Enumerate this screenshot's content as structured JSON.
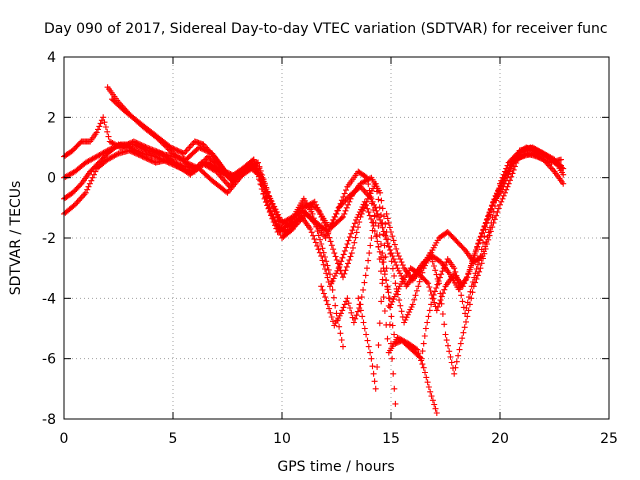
{
  "chart_data": {
    "type": "scatter",
    "title": "Day 090 of 2017, Sidereal Day-to-day VTEC variation (SDTVAR) for receiver func",
    "xlabel": "GPS time / hours",
    "ylabel": "SDTVAR / TECUs",
    "xlim": [
      0,
      25
    ],
    "ylim": [
      -8,
      4
    ],
    "xticks": [
      0,
      5,
      10,
      15,
      20,
      25
    ],
    "yticks": [
      -8,
      -6,
      -4,
      -2,
      0,
      2,
      4
    ],
    "xtick_labels": [
      "0",
      "5",
      "10",
      "15",
      "20",
      "25"
    ],
    "ytick_labels": [
      "-8",
      "-6",
      "-4",
      "-2",
      "0",
      "2",
      "4"
    ],
    "grid": true,
    "marker": "+",
    "color": "#ff0000",
    "series": [
      {
        "points": [
          [
            0.0,
            0.7
          ],
          [
            0.4,
            0.9
          ],
          [
            0.8,
            1.2
          ],
          [
            1.2,
            1.2
          ],
          [
            1.5,
            1.5
          ],
          [
            1.8,
            2.0
          ],
          [
            2.1,
            1.2
          ],
          [
            2.6,
            1.0
          ],
          [
            3.2,
            1.2
          ],
          [
            3.8,
            1.0
          ],
          [
            4.5,
            0.8
          ],
          [
            5.2,
            0.4
          ],
          [
            5.8,
            0.1
          ],
          [
            6.3,
            0.5
          ],
          [
            7.0,
            0.2
          ],
          [
            7.6,
            -0.3
          ],
          [
            8.2,
            0.3
          ],
          [
            8.7,
            0.6
          ],
          [
            9.3,
            -0.8
          ],
          [
            9.8,
            -1.6
          ],
          [
            10.2,
            -1.8
          ],
          [
            10.6,
            -1.2
          ],
          [
            11.0,
            -0.7
          ],
          [
            11.4,
            -1.2
          ],
          [
            11.8,
            -2.2
          ],
          [
            12.2,
            -3.2
          ],
          [
            12.5,
            -4.5
          ],
          [
            12.8,
            -5.6
          ]
        ]
      },
      {
        "points": [
          [
            2.0,
            3.0
          ],
          [
            2.5,
            2.5
          ],
          [
            3.0,
            2.1
          ],
          [
            3.6,
            1.7
          ],
          [
            4.3,
            1.3
          ],
          [
            5.0,
            0.8
          ],
          [
            5.6,
            0.5
          ],
          [
            6.2,
            0.3
          ],
          [
            6.8,
            -0.1
          ],
          [
            7.5,
            -0.5
          ],
          [
            8.3,
            0.2
          ],
          [
            8.9,
            0.5
          ],
          [
            9.4,
            -1.0
          ],
          [
            10.0,
            -2.0
          ],
          [
            10.5,
            -1.7
          ],
          [
            11.0,
            -1.0
          ],
          [
            11.5,
            -0.8
          ],
          [
            12.0,
            -1.6
          ],
          [
            12.4,
            -2.5
          ],
          [
            12.8,
            -3.3
          ],
          [
            13.2,
            -2.5
          ],
          [
            13.6,
            -1.3
          ],
          [
            14.0,
            -0.6
          ],
          [
            14.3,
            -0.2
          ],
          [
            14.6,
            -1.5
          ],
          [
            14.8,
            -3.0
          ],
          [
            15.0,
            -5.5
          ],
          [
            15.2,
            -7.5
          ]
        ]
      },
      {
        "points": [
          [
            2.2,
            2.6
          ],
          [
            2.8,
            2.2
          ],
          [
            3.5,
            1.8
          ],
          [
            4.2,
            1.4
          ],
          [
            4.9,
            1.0
          ],
          [
            5.5,
            0.8
          ],
          [
            6.0,
            1.2
          ],
          [
            6.4,
            1.1
          ],
          [
            7.0,
            0.6
          ],
          [
            7.6,
            0.0
          ],
          [
            8.2,
            0.3
          ],
          [
            8.7,
            0.6
          ],
          [
            9.2,
            -0.7
          ],
          [
            9.8,
            -1.8
          ],
          [
            10.4,
            -1.5
          ],
          [
            11.0,
            -0.9
          ],
          [
            11.6,
            -1.0
          ],
          [
            12.2,
            -1.7
          ],
          [
            12.8,
            -1.3
          ],
          [
            13.2,
            -0.6
          ],
          [
            13.6,
            -0.2
          ],
          [
            14.1,
            0.0
          ],
          [
            14.5,
            -0.5
          ],
          [
            14.8,
            -1.8
          ],
          [
            15.2,
            -3.5
          ],
          [
            15.6,
            -4.8
          ],
          [
            16.0,
            -4.2
          ],
          [
            16.5,
            -3.0
          ],
          [
            16.9,
            -2.4
          ],
          [
            17.2,
            -2.0
          ],
          [
            17.6,
            -1.8
          ],
          [
            18.0,
            -2.1
          ],
          [
            18.4,
            -2.4
          ],
          [
            18.8,
            -2.8
          ],
          [
            19.2,
            -2.6
          ],
          [
            19.6,
            -1.5
          ],
          [
            20.0,
            -0.2
          ],
          [
            20.4,
            0.5
          ],
          [
            20.8,
            0.8
          ],
          [
            21.2,
            1.0
          ],
          [
            21.6,
            0.9
          ],
          [
            22.2,
            0.7
          ],
          [
            22.8,
            0.4
          ]
        ]
      },
      {
        "points": [
          [
            0.0,
            -1.2
          ],
          [
            0.5,
            -0.9
          ],
          [
            1.0,
            -0.5
          ],
          [
            1.5,
            0.3
          ],
          [
            2.0,
            0.6
          ],
          [
            2.5,
            0.8
          ],
          [
            3.0,
            0.9
          ],
          [
            3.6,
            0.7
          ],
          [
            4.2,
            0.5
          ],
          [
            4.8,
            0.6
          ],
          [
            5.4,
            0.4
          ],
          [
            6.0,
            0.3
          ],
          [
            6.6,
            0.5
          ],
          [
            7.2,
            0.2
          ],
          [
            7.8,
            -0.1
          ],
          [
            8.4,
            0.4
          ],
          [
            8.9,
            0.5
          ],
          [
            9.4,
            -0.6
          ],
          [
            10.0,
            -1.5
          ],
          [
            10.5,
            -1.3
          ],
          [
            11.0,
            -1.1
          ],
          [
            11.5,
            -1.5
          ],
          [
            12.0,
            -2.0
          ],
          [
            12.5,
            -1.2
          ],
          [
            13.0,
            -0.3
          ],
          [
            13.5,
            0.2
          ],
          [
            13.9,
            0.0
          ],
          [
            14.3,
            -1.5
          ],
          [
            14.6,
            -3.5
          ],
          [
            14.9,
            -5.8
          ],
          [
            15.3,
            -5.3
          ],
          [
            15.8,
            -5.5
          ],
          [
            16.2,
            -5.7
          ],
          [
            16.5,
            -6.3
          ],
          [
            16.8,
            -7.1
          ],
          [
            17.1,
            -7.8
          ]
        ]
      },
      {
        "points": [
          [
            0.0,
            -0.7
          ],
          [
            0.4,
            -0.5
          ],
          [
            0.8,
            -0.2
          ],
          [
            1.2,
            0.2
          ],
          [
            1.6,
            0.5
          ],
          [
            2.0,
            0.8
          ],
          [
            2.5,
            1.1
          ],
          [
            3.0,
            1.0
          ],
          [
            3.6,
            0.8
          ],
          [
            4.2,
            0.7
          ],
          [
            4.8,
            0.5
          ],
          [
            5.4,
            0.3
          ],
          [
            6.0,
            0.2
          ],
          [
            6.6,
            0.7
          ],
          [
            7.2,
            0.3
          ],
          [
            7.7,
            -0.1
          ],
          [
            8.3,
            0.3
          ],
          [
            8.8,
            0.4
          ],
          [
            9.3,
            -0.5
          ],
          [
            9.9,
            -1.4
          ],
          [
            10.4,
            -1.6
          ],
          [
            10.9,
            -1.3
          ],
          [
            11.3,
            -1.7
          ],
          [
            11.8,
            -2.6
          ],
          [
            12.2,
            -3.6
          ],
          [
            12.6,
            -3.0
          ],
          [
            13.0,
            -2.2
          ],
          [
            13.4,
            -1.4
          ],
          [
            13.8,
            -0.8
          ],
          [
            14.2,
            -1.6
          ],
          [
            14.6,
            -2.8
          ],
          [
            15.0,
            -4.2
          ],
          [
            15.4,
            -3.6
          ],
          [
            15.9,
            -3.0
          ],
          [
            16.3,
            -3.2
          ],
          [
            16.7,
            -3.5
          ],
          [
            17.1,
            -4.4
          ],
          [
            17.5,
            -3.6
          ],
          [
            17.9,
            -3.2
          ],
          [
            18.3,
            -3.6
          ],
          [
            18.6,
            -3.1
          ],
          [
            19.0,
            -2.2
          ],
          [
            19.4,
            -1.4
          ],
          [
            19.8,
            -0.6
          ],
          [
            20.2,
            0.0
          ],
          [
            20.6,
            0.6
          ],
          [
            21.0,
            0.7
          ],
          [
            21.5,
            0.8
          ],
          [
            22.0,
            0.6
          ],
          [
            22.5,
            0.2
          ],
          [
            22.9,
            -0.2
          ]
        ]
      },
      {
        "points": [
          [
            11.8,
            -3.6
          ],
          [
            12.1,
            -4.2
          ],
          [
            12.4,
            -4.9
          ],
          [
            12.7,
            -4.5
          ],
          [
            13.0,
            -4.0
          ],
          [
            13.3,
            -4.8
          ],
          [
            13.6,
            -4.2
          ],
          [
            13.9,
            -3.0
          ],
          [
            14.1,
            -2.0
          ],
          [
            14.3,
            -1.0
          ],
          [
            14.6,
            -2.5
          ],
          [
            14.9,
            -4.0
          ],
          [
            15.2,
            -5.5
          ],
          [
            15.5,
            -5.4
          ],
          [
            15.8,
            -5.6
          ],
          [
            16.1,
            -5.8
          ],
          [
            16.4,
            -6.0
          ],
          [
            16.6,
            -5.0
          ],
          [
            16.9,
            -4.0
          ],
          [
            17.3,
            -3.2
          ],
          [
            17.6,
            -2.7
          ],
          [
            17.9,
            -3.0
          ],
          [
            18.1,
            -3.5
          ],
          [
            18.4,
            -4.5
          ],
          [
            18.7,
            -3.6
          ],
          [
            19.1,
            -2.6
          ],
          [
            19.4,
            -1.5
          ],
          [
            19.7,
            -0.8
          ],
          [
            20.1,
            -0.4
          ],
          [
            20.5,
            0.3
          ],
          [
            20.9,
            0.9
          ],
          [
            21.4,
            1.0
          ],
          [
            22.0,
            0.8
          ],
          [
            22.5,
            0.5
          ],
          [
            22.9,
            0.3
          ]
        ]
      },
      {
        "points": [
          [
            13.5,
            -4.0
          ],
          [
            13.8,
            -5.0
          ],
          [
            14.1,
            -6.0
          ],
          [
            14.3,
            -7.0
          ],
          [
            14.8,
            -1.2
          ],
          [
            15.0,
            -1.8
          ],
          [
            15.3,
            -2.5
          ],
          [
            15.6,
            -3.0
          ],
          [
            16.0,
            -3.4
          ],
          [
            16.4,
            -3.0
          ],
          [
            16.8,
            -2.5
          ],
          [
            17.2,
            -3.5
          ],
          [
            17.5,
            -5.2
          ],
          [
            17.9,
            -6.5
          ],
          [
            18.2,
            -5.5
          ],
          [
            18.5,
            -4.6
          ],
          [
            18.8,
            -3.6
          ],
          [
            19.1,
            -3.0
          ],
          [
            19.4,
            -2.2
          ],
          [
            19.7,
            -1.5
          ],
          [
            20.0,
            -0.9
          ],
          [
            20.4,
            -0.2
          ],
          [
            20.8,
            0.6
          ],
          [
            21.2,
            0.8
          ],
          [
            21.7,
            0.7
          ],
          [
            22.3,
            0.5
          ],
          [
            22.8,
            0.6
          ]
        ]
      },
      {
        "points": [
          [
            0.0,
            0.0
          ],
          [
            0.5,
            0.2
          ],
          [
            1.0,
            0.5
          ],
          [
            1.5,
            0.7
          ],
          [
            2.0,
            0.9
          ],
          [
            2.6,
            1.1
          ],
          [
            3.2,
            1.1
          ],
          [
            3.8,
            0.9
          ],
          [
            4.4,
            0.8
          ],
          [
            5.0,
            0.7
          ],
          [
            5.6,
            0.6
          ],
          [
            6.2,
            1.0
          ],
          [
            6.8,
            0.8
          ],
          [
            7.4,
            0.2
          ],
          [
            8.0,
            0.0
          ],
          [
            8.6,
            0.3
          ],
          [
            9.1,
            0.0
          ],
          [
            9.6,
            -1.0
          ],
          [
            10.1,
            -1.9
          ],
          [
            10.6,
            -1.6
          ],
          [
            11.1,
            -1.2
          ],
          [
            11.6,
            -1.5
          ],
          [
            12.1,
            -1.8
          ],
          [
            12.6,
            -1.0
          ],
          [
            13.1,
            -0.6
          ],
          [
            13.6,
            -0.3
          ],
          [
            14.1,
            -0.7
          ],
          [
            14.5,
            -1.4
          ],
          [
            14.9,
            -2.3
          ],
          [
            15.3,
            -3.0
          ],
          [
            15.7,
            -3.6
          ],
          [
            16.1,
            -3.2
          ],
          [
            16.5,
            -2.8
          ],
          [
            16.9,
            -2.6
          ],
          [
            17.3,
            -2.8
          ],
          [
            17.7,
            -3.2
          ],
          [
            18.1,
            -3.7
          ],
          [
            18.5,
            -3.3
          ],
          [
            18.9,
            -2.4
          ],
          [
            19.3,
            -1.6
          ],
          [
            19.7,
            -0.8
          ],
          [
            20.1,
            -0.2
          ],
          [
            20.5,
            0.4
          ],
          [
            21.0,
            0.9
          ],
          [
            21.5,
            1.0
          ],
          [
            22.0,
            0.8
          ],
          [
            22.5,
            0.6
          ],
          [
            22.9,
            0.1
          ]
        ]
      }
    ]
  }
}
